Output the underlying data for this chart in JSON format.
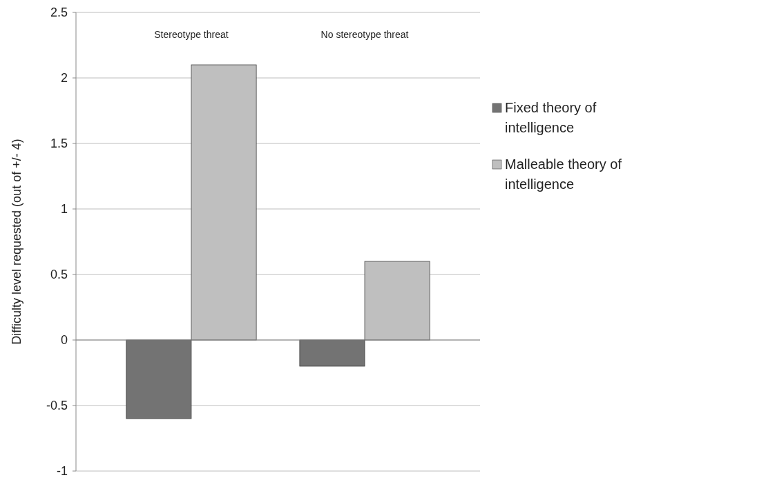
{
  "chart_data": {
    "type": "bar",
    "ylabel": "Difficulty level requested (out of +/- 4)",
    "categories": [
      "Stereotype threat",
      "No stereotype threat"
    ],
    "series": [
      {
        "name": "Fixed theory of intelligence",
        "color": "#737373",
        "values": [
          -0.6,
          -0.2
        ]
      },
      {
        "name": "Malleable theory of intelligence",
        "color": "#bfbfbf",
        "values": [
          2.1,
          0.6
        ]
      }
    ],
    "ylim": [
      -1,
      2.5
    ],
    "yticks": [
      -1,
      -0.5,
      0,
      0.5,
      1,
      1.5,
      2,
      2.5
    ],
    "grid": "y",
    "legend": "right"
  }
}
